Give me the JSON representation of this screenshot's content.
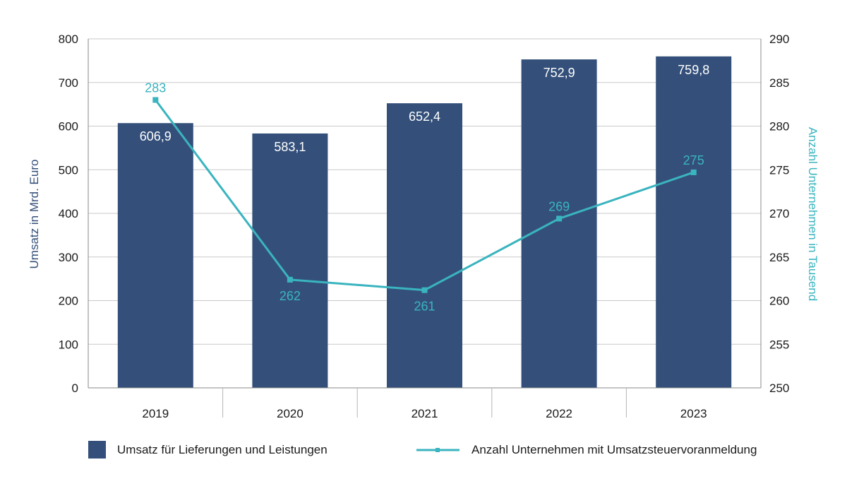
{
  "chart_data": {
    "type": "bar",
    "categories": [
      "2019",
      "2020",
      "2021",
      "2022",
      "2023"
    ],
    "series": [
      {
        "name": "Umsatz für Lieferungen und Leistungen",
        "kind": "bar",
        "axis": "left",
        "color": "#34507a",
        "values": [
          606.9,
          583.1,
          652.4,
          752.9,
          759.8
        ],
        "labels": [
          "606,9",
          "583,1",
          "652,4",
          "752,9",
          "759,8"
        ]
      },
      {
        "name": "Anzahl Unternehmen mit Umsatzsteuervoranmeldung",
        "kind": "line",
        "axis": "right",
        "color": "#3ab4bf",
        "values": [
          283,
          262.4,
          261.2,
          269.4,
          274.7
        ],
        "labels": [
          "283",
          "262",
          "261",
          "269",
          "275"
        ]
      }
    ],
    "y_left": {
      "label": "Umsatz in Mrd. Euro",
      "range": [
        0,
        800
      ],
      "ticks": [
        "0",
        "100",
        "200",
        "300",
        "400",
        "500",
        "600",
        "700",
        "800"
      ],
      "color": "#34507a"
    },
    "y_right": {
      "label": "Anzahl Unternehmen in Tausend",
      "range": [
        250,
        290
      ],
      "ticks": [
        "250",
        "255",
        "260",
        "265",
        "270",
        "275",
        "280",
        "285",
        "290"
      ],
      "color": "#3ab4bf"
    },
    "grid": true,
    "legend_position": "bottom"
  }
}
